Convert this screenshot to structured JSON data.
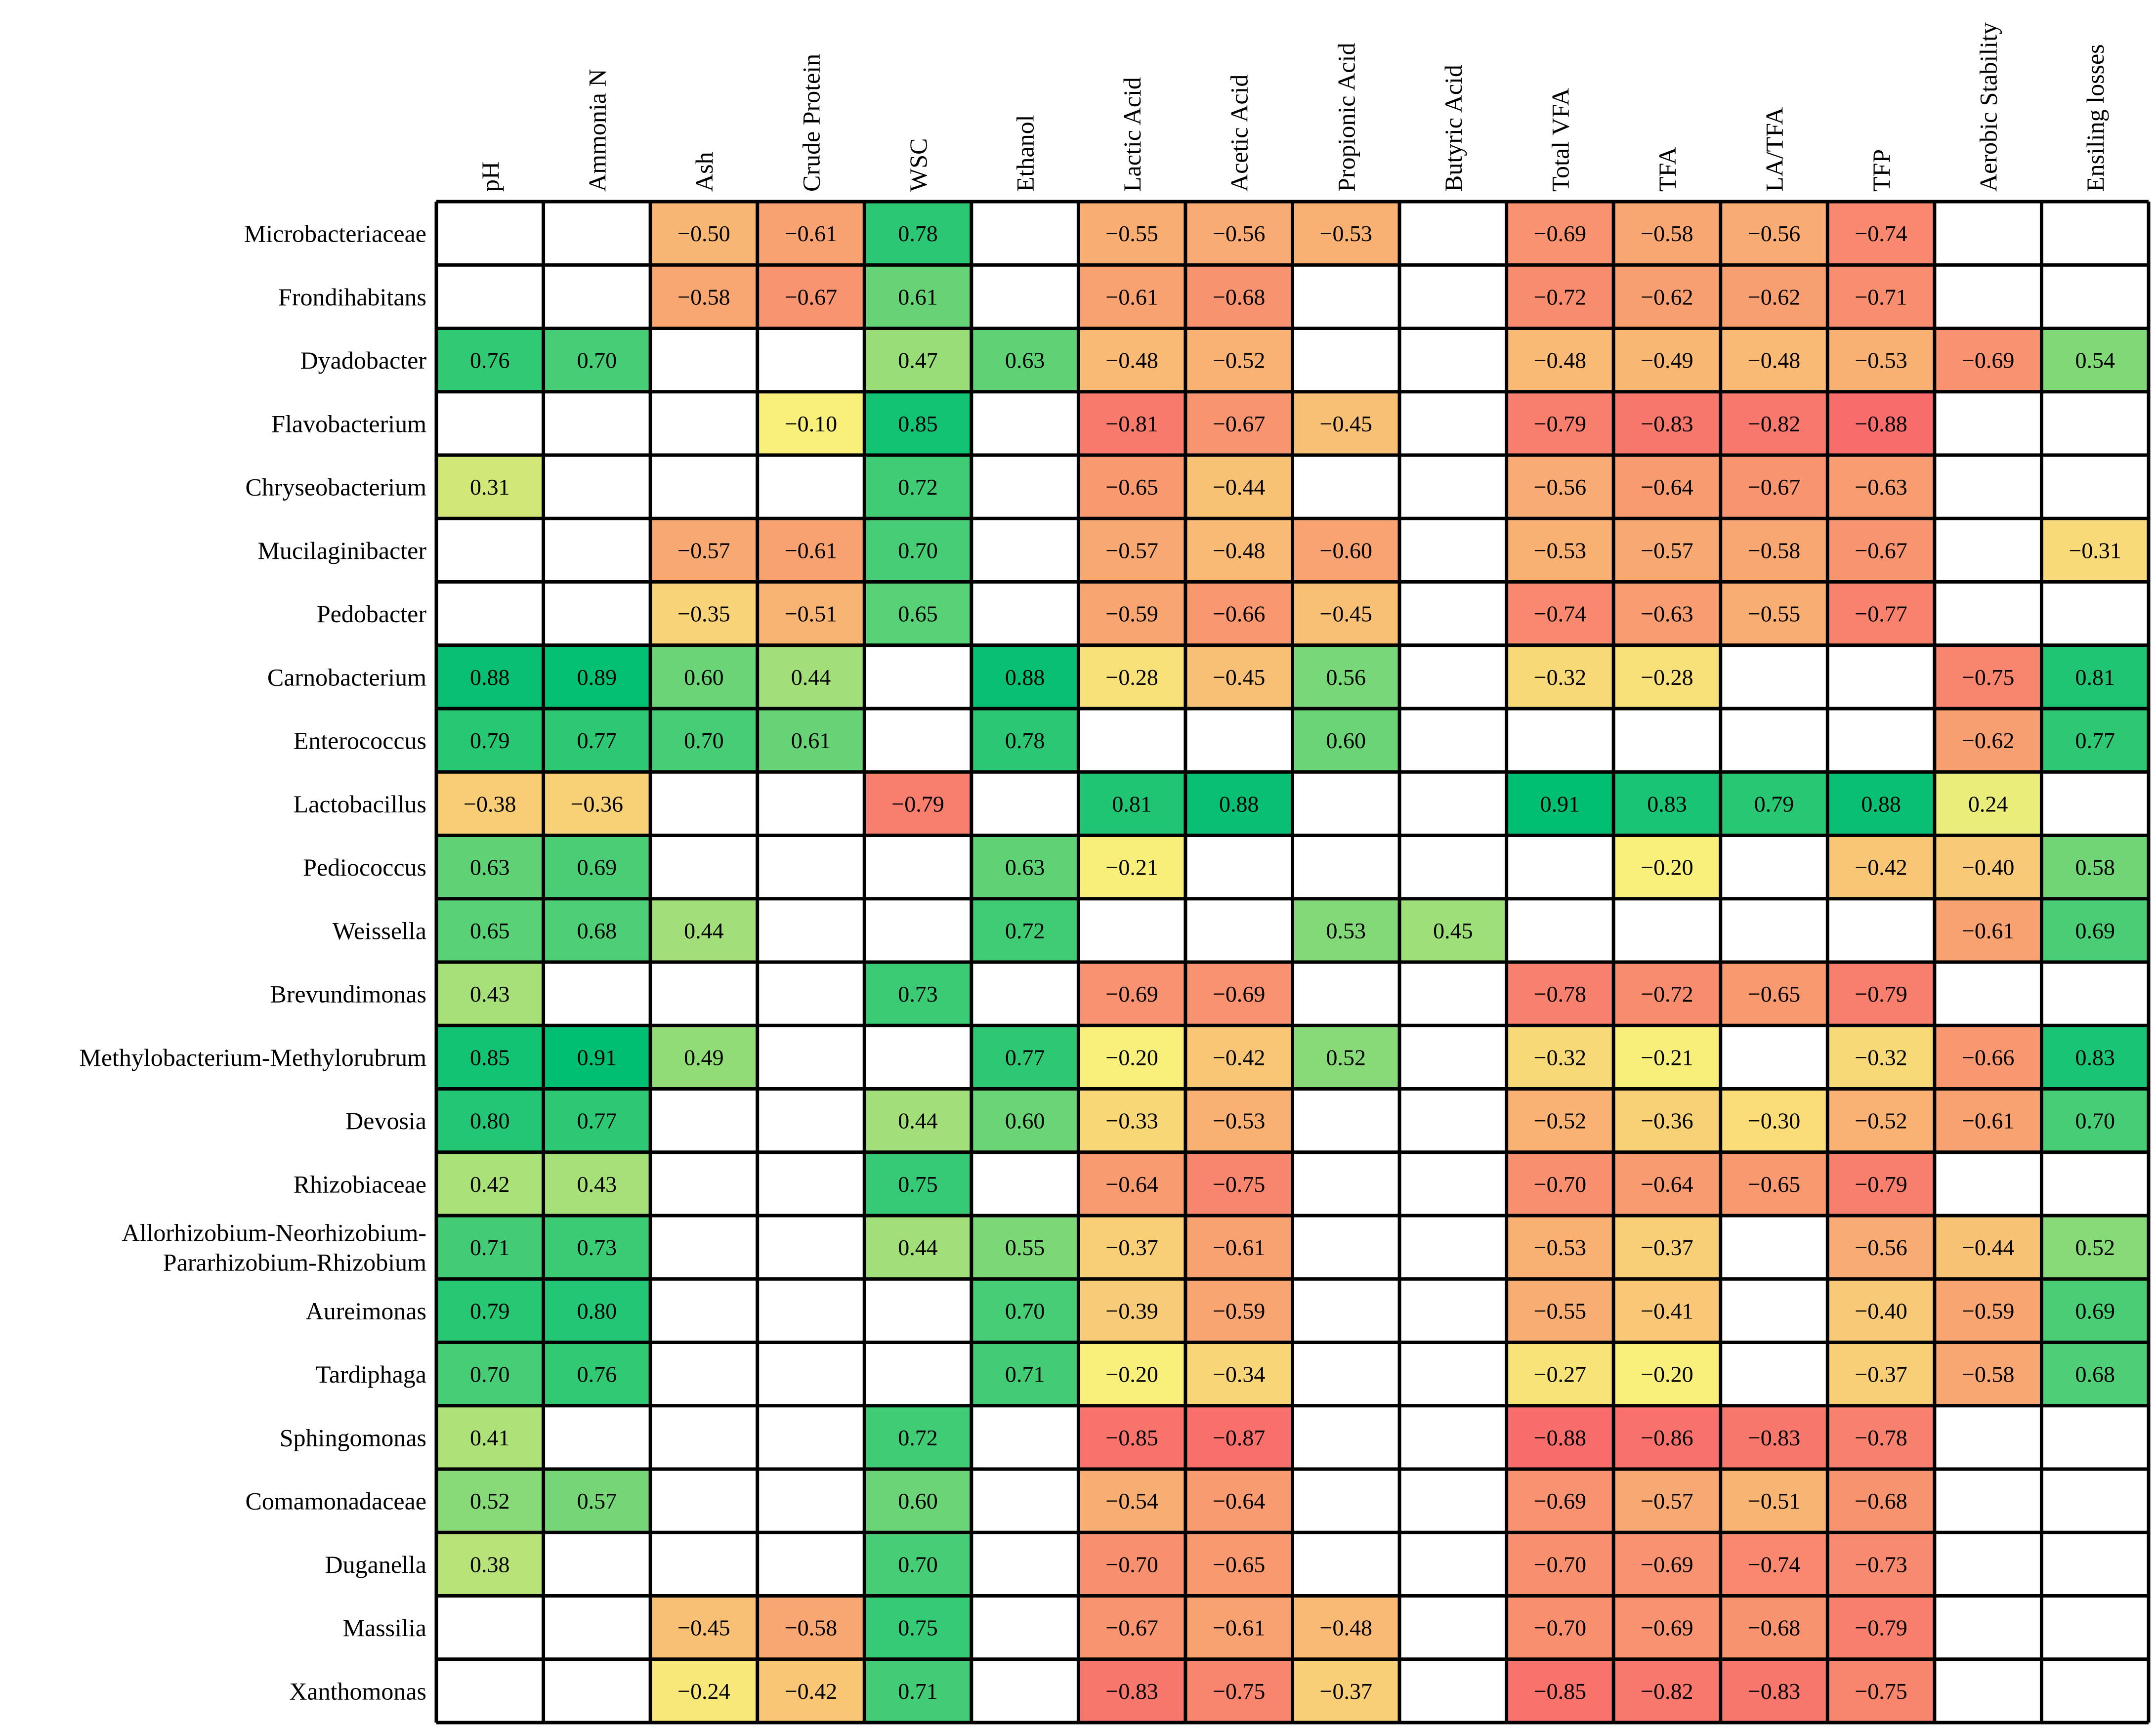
{
  "chart_data": {
    "type": "heatmap",
    "title": "",
    "columns": [
      "pH",
      "Ammonia N",
      "Ash",
      "Crude Protein",
      "WSC",
      "Ethanol",
      "Lactic Acid",
      "Acetic Acid",
      "Propionic Acid",
      "Butyric Acid",
      "Total VFA",
      "TFA",
      "LA/TFA",
      "TFP",
      "Aerobic Stability",
      "Ensiling losses"
    ],
    "rows": [
      {
        "label": "Microbacteriaceae",
        "values": [
          null,
          null,
          -0.5,
          -0.61,
          0.78,
          null,
          -0.55,
          -0.56,
          -0.53,
          null,
          -0.69,
          -0.58,
          -0.56,
          -0.74,
          null,
          null
        ]
      },
      {
        "label": "Frondihabitans",
        "values": [
          null,
          null,
          -0.58,
          -0.67,
          0.61,
          null,
          -0.61,
          -0.68,
          null,
          null,
          -0.72,
          -0.62,
          -0.62,
          -0.71,
          null,
          null
        ]
      },
      {
        "label": "Dyadobacter",
        "values": [
          0.76,
          0.7,
          null,
          null,
          0.47,
          0.63,
          -0.48,
          -0.52,
          null,
          null,
          -0.48,
          -0.49,
          -0.48,
          -0.53,
          -0.69,
          0.54
        ]
      },
      {
        "label": "Flavobacterium",
        "values": [
          null,
          null,
          null,
          -0.1,
          0.85,
          null,
          -0.81,
          -0.67,
          -0.45,
          null,
          -0.79,
          -0.83,
          -0.82,
          -0.88,
          null,
          null
        ]
      },
      {
        "label": "Chryseobacterium",
        "values": [
          0.31,
          null,
          null,
          null,
          0.72,
          null,
          -0.65,
          -0.44,
          null,
          null,
          -0.56,
          -0.64,
          -0.67,
          -0.63,
          null,
          null
        ]
      },
      {
        "label": "Mucilaginibacter",
        "values": [
          null,
          null,
          -0.57,
          -0.61,
          0.7,
          null,
          -0.57,
          -0.48,
          -0.6,
          null,
          -0.53,
          -0.57,
          -0.58,
          -0.67,
          null,
          -0.31
        ]
      },
      {
        "label": "Pedobacter",
        "values": [
          null,
          null,
          -0.35,
          -0.51,
          0.65,
          null,
          -0.59,
          -0.66,
          -0.45,
          null,
          -0.74,
          -0.63,
          -0.55,
          -0.77,
          null,
          null
        ]
      },
      {
        "label": "Carnobacterium",
        "values": [
          0.88,
          0.89,
          0.6,
          0.44,
          null,
          0.88,
          -0.28,
          -0.45,
          0.56,
          null,
          -0.32,
          -0.28,
          null,
          null,
          -0.75,
          0.81
        ]
      },
      {
        "label": "Enterococcus",
        "values": [
          0.79,
          0.77,
          0.7,
          0.61,
          null,
          0.78,
          null,
          null,
          0.6,
          null,
          null,
          null,
          null,
          null,
          -0.62,
          0.77
        ]
      },
      {
        "label": "Lactobacillus",
        "values": [
          -0.38,
          -0.36,
          null,
          null,
          -0.79,
          null,
          0.81,
          0.88,
          null,
          null,
          0.91,
          0.83,
          0.79,
          0.88,
          0.24,
          null
        ]
      },
      {
        "label": "Pediococcus",
        "values": [
          0.63,
          0.69,
          null,
          null,
          null,
          0.63,
          -0.21,
          null,
          null,
          null,
          null,
          -0.2,
          null,
          -0.42,
          -0.4,
          0.58
        ]
      },
      {
        "label": "Weissella",
        "values": [
          0.65,
          0.68,
          0.44,
          null,
          null,
          0.72,
          null,
          null,
          0.53,
          0.45,
          null,
          null,
          null,
          null,
          -0.61,
          0.69
        ]
      },
      {
        "label": "Brevundimonas",
        "values": [
          0.43,
          null,
          null,
          null,
          0.73,
          null,
          -0.69,
          -0.69,
          null,
          null,
          -0.78,
          -0.72,
          -0.65,
          -0.79,
          null,
          null
        ]
      },
      {
        "label": "Methylobacterium-Methylorubrum",
        "values": [
          0.85,
          0.91,
          0.49,
          null,
          null,
          0.77,
          -0.2,
          -0.42,
          0.52,
          null,
          -0.32,
          -0.21,
          null,
          -0.32,
          -0.66,
          0.83
        ]
      },
      {
        "label": "Devosia",
        "values": [
          0.8,
          0.77,
          null,
          null,
          0.44,
          0.6,
          -0.33,
          -0.53,
          null,
          null,
          -0.52,
          -0.36,
          -0.3,
          -0.52,
          -0.61,
          0.7
        ]
      },
      {
        "label": "Rhizobiaceae",
        "values": [
          0.42,
          0.43,
          null,
          null,
          0.75,
          null,
          -0.64,
          -0.75,
          null,
          null,
          -0.7,
          -0.64,
          -0.65,
          -0.79,
          null,
          null
        ]
      },
      {
        "label": "Allorhizobium-Neorhizobium-Pararhizobium-Rhizobium",
        "label_lines": [
          "Allorhizobium-Neorhizobium-",
          "Pararhizobium-Rhizobium"
        ],
        "values": [
          0.71,
          0.73,
          null,
          null,
          0.44,
          0.55,
          -0.37,
          -0.61,
          null,
          null,
          -0.53,
          -0.37,
          null,
          -0.56,
          -0.44,
          0.52
        ]
      },
      {
        "label": "Aureimonas",
        "values": [
          0.79,
          0.8,
          null,
          null,
          null,
          0.7,
          -0.39,
          -0.59,
          null,
          null,
          -0.55,
          -0.41,
          null,
          -0.4,
          -0.59,
          0.69
        ]
      },
      {
        "label": "Tardiphaga",
        "values": [
          0.7,
          0.76,
          null,
          null,
          null,
          0.71,
          -0.2,
          -0.34,
          null,
          null,
          -0.27,
          -0.2,
          null,
          -0.37,
          -0.58,
          0.68
        ]
      },
      {
        "label": "Sphingomonas",
        "values": [
          0.41,
          null,
          null,
          null,
          0.72,
          null,
          -0.85,
          -0.87,
          null,
          null,
          -0.88,
          -0.86,
          -0.83,
          -0.78,
          null,
          null
        ]
      },
      {
        "label": "Comamonadaceae",
        "values": [
          0.52,
          0.57,
          null,
          null,
          0.6,
          null,
          -0.54,
          -0.64,
          null,
          null,
          -0.69,
          -0.57,
          -0.51,
          -0.68,
          null,
          null
        ]
      },
      {
        "label": "Duganella",
        "values": [
          0.38,
          null,
          null,
          null,
          0.7,
          null,
          -0.7,
          -0.65,
          null,
          null,
          -0.7,
          -0.69,
          -0.74,
          -0.73,
          null,
          null
        ]
      },
      {
        "label": "Massilia",
        "values": [
          null,
          null,
          -0.45,
          -0.58,
          0.75,
          null,
          -0.67,
          -0.61,
          -0.48,
          null,
          -0.7,
          -0.69,
          -0.68,
          -0.79,
          null,
          null
        ]
      },
      {
        "label": "Xanthomonas",
        "values": [
          null,
          null,
          -0.24,
          -0.42,
          0.71,
          null,
          -0.83,
          -0.75,
          -0.37,
          null,
          -0.85,
          -0.82,
          -0.83,
          -0.75,
          null,
          null
        ]
      }
    ],
    "value_format": "signed-2-decimals",
    "minus_sign": "−",
    "colors": {
      "empty": "#ffffff",
      "strongest_negative": "#f8696b",
      "weak": "#f8f07a",
      "strongest_positive": "#00bf73"
    }
  }
}
